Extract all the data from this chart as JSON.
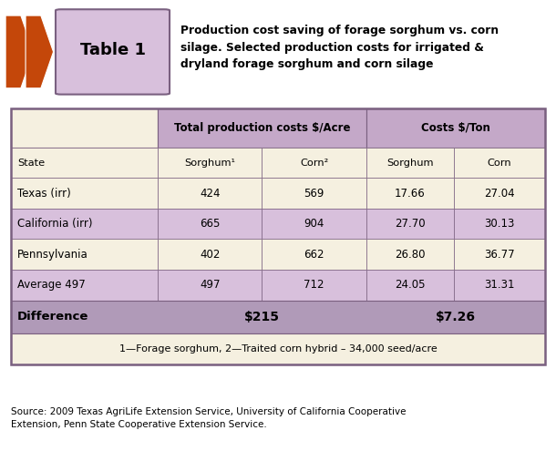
{
  "title_text": "Production cost saving of forage sorghum vs. corn\nsilage. Selected production costs for irrigated &\ndryland forage sorghum and corn silage",
  "table_label": "Table 1",
  "header1": "Total production costs $/Acre",
  "header2": "Costs $/Ton",
  "col_labels": [
    "State",
    "Sorghum¹",
    "Corn²",
    "Sorghum",
    "Corn"
  ],
  "rows": [
    [
      "Texas (irr)",
      "424",
      "569",
      "17.66",
      "27.04"
    ],
    [
      "California (irr)",
      "665",
      "904",
      "27.70",
      "30.13"
    ],
    [
      "Pennsylvania",
      "402",
      "662",
      "26.80",
      "36.77"
    ],
    [
      "Average 497",
      "497",
      "712",
      "24.05",
      "31.31"
    ]
  ],
  "diff_label": "Difference",
  "diff_val1": "$215",
  "diff_val2": "$7.26",
  "footnote": "1—Forage sorghum, 2—Traited corn hybrid – 34,000 seed/acre",
  "source": "Source: 2009 Texas AgriLife Extension Service, University of California Cooperative\nExtension, Penn State Cooperative Extension Service.",
  "color_purple_header": "#c4a8c8",
  "color_purple_light": "#d8c0dc",
  "color_cream": "#f5f0e0",
  "color_diff_bg": "#b09ab8",
  "color_border": "#7a6080",
  "arrow_color": "#c4470a",
  "bg_color": "#ffffff"
}
